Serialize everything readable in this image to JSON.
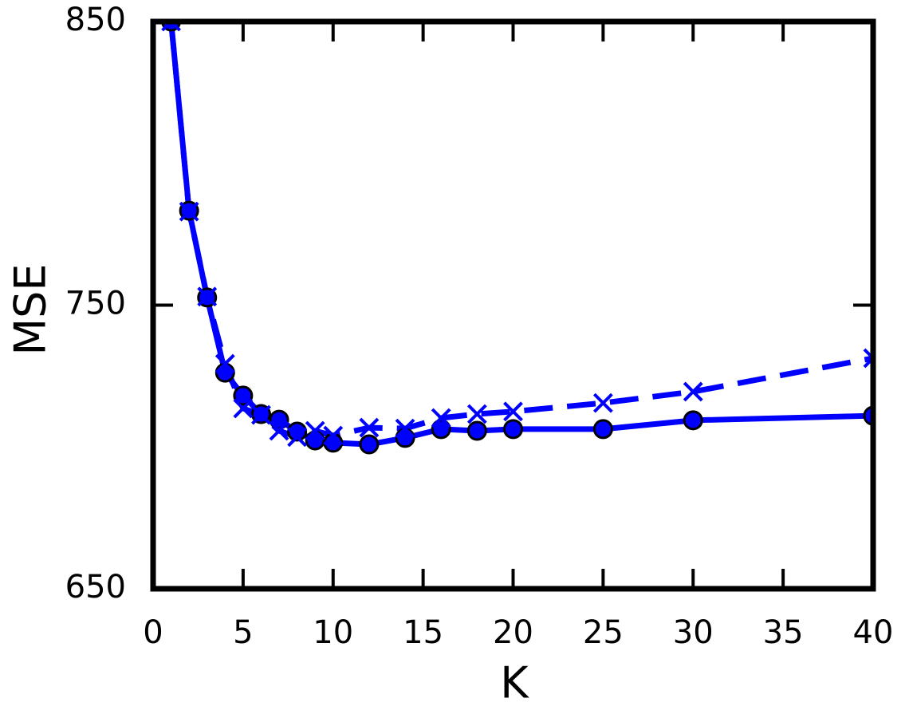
{
  "chart_data": {
    "type": "line",
    "xlabel": "K",
    "ylabel": "MSE",
    "x": [
      1,
      2,
      3,
      4,
      5,
      6,
      7,
      8,
      9,
      10,
      12,
      14,
      16,
      18,
      20,
      25,
      30,
      40
    ],
    "series": [
      {
        "color": "#0000ff",
        "linestyle": "solid",
        "marker": "o",
        "values": [
          850,
          783.3,
          752.7,
          726.2,
          718.1,
          711.6,
          709.6,
          705.4,
          702.3,
          701.5,
          700.9,
          703.2,
          706.3,
          705.7,
          706.3,
          706.3,
          709.4,
          711.0
        ]
      },
      {
        "color": "#0000ff",
        "linestyle": "dashed",
        "marker": "x",
        "values": [
          850,
          783,
          753,
          729.3,
          713.6,
          711.3,
          705.7,
          703.5,
          705.7,
          704,
          706.8,
          706.5,
          710.2,
          711.6,
          712.5,
          715.5,
          719.5,
          731.3
        ]
      }
    ],
    "xlim": [
      0,
      40
    ],
    "xticks": [
      0,
      5,
      10,
      15,
      20,
      25,
      30,
      35,
      40
    ],
    "ylim": [
      650,
      850
    ],
    "yticks": [
      650,
      750,
      850
    ],
    "grid": false
  }
}
